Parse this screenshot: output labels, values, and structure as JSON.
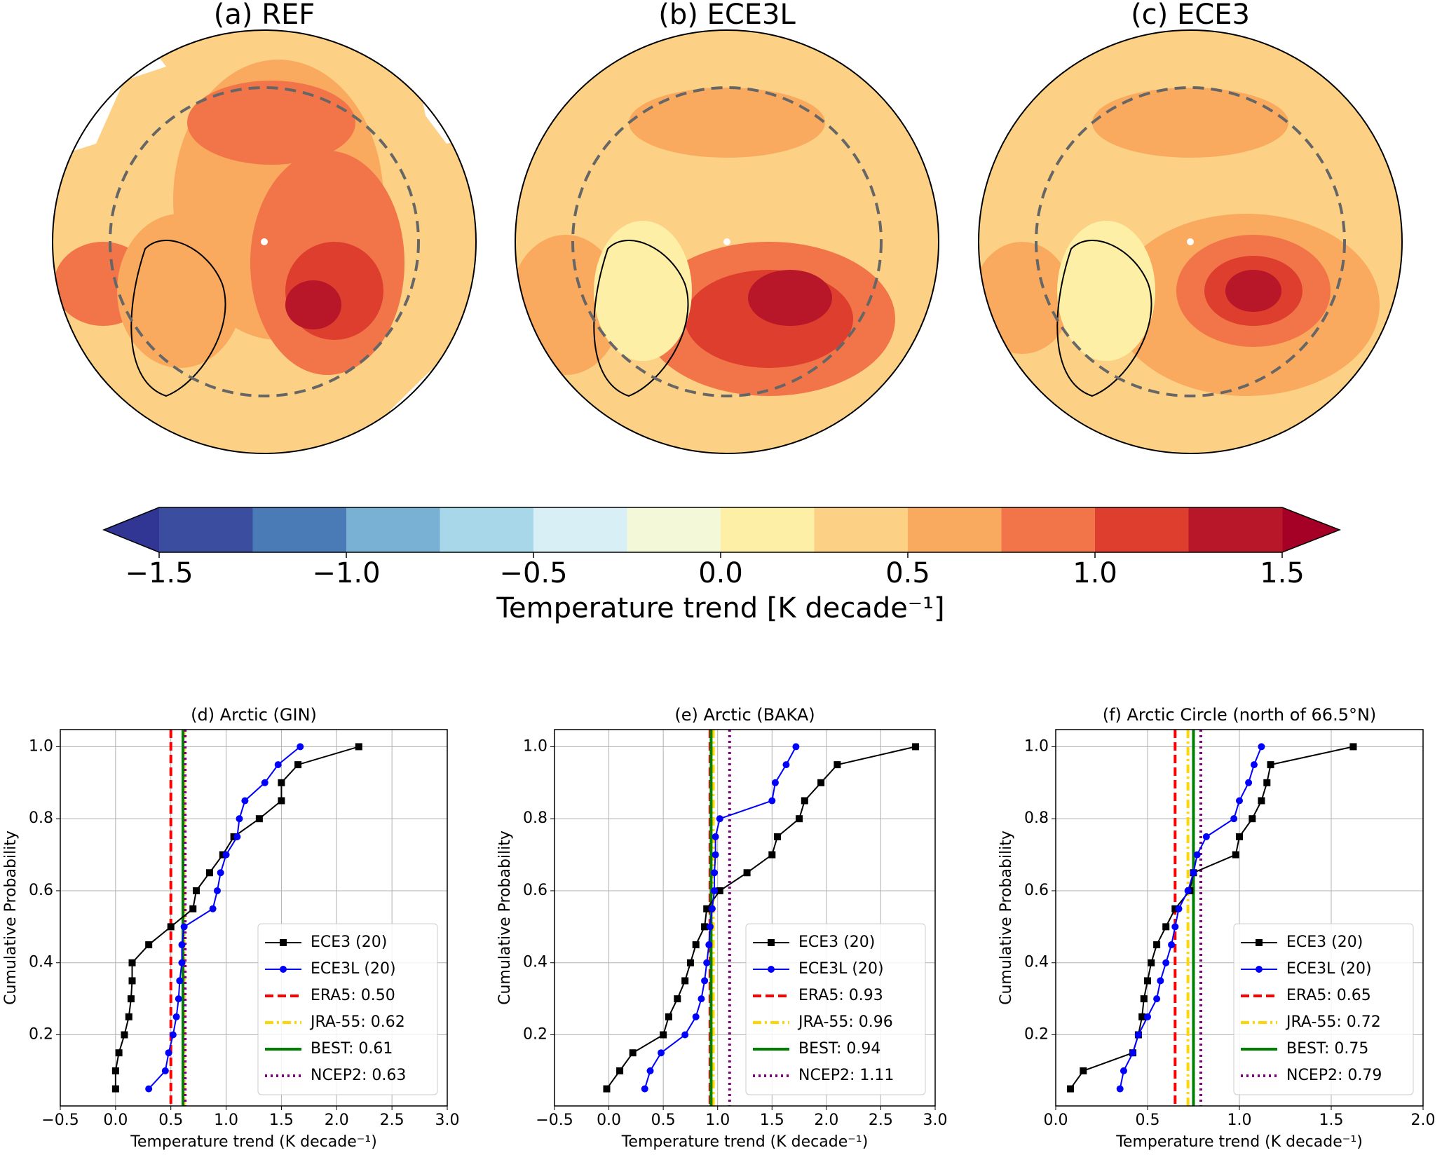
{
  "maps": [
    {
      "title": "(a) REF"
    },
    {
      "title": "(b) ECE3L"
    },
    {
      "title": "(c) ECE3"
    }
  ],
  "chart_data": [
    {
      "type": "colorbar",
      "label": "Temperature trend [K decade⁻¹]",
      "levels": [
        -1.5,
        -1.25,
        -1.0,
        -0.75,
        -0.5,
        -0.25,
        0.0,
        0.25,
        0.5,
        0.75,
        1.0,
        1.25,
        1.5
      ],
      "colors": [
        "#3b4d9f",
        "#4a7bb6",
        "#79b1d5",
        "#a8d7e9",
        "#d8eff6",
        "#f3f8d8",
        "#fdefa6",
        "#fcd185",
        "#f9aa5e",
        "#f27549",
        "#dd3e2d",
        "#b8172a"
      ],
      "under_color": "#313695",
      "over_color": "#a50026",
      "ticks": [
        {
          "value": -1.5,
          "label": "−1.5"
        },
        {
          "value": -1.0,
          "label": "−1.0"
        },
        {
          "value": -0.5,
          "label": "−0.5"
        },
        {
          "value": 0,
          "label": "0.0"
        },
        0.5,
        {
          "value": 1.0,
          "label": "1.0"
        },
        1.5
      ]
    },
    {
      "type": "line",
      "title": "(d) Arctic (GIN)",
      "xlabel": "Temperature trend (K decade⁻¹)",
      "ylabel": "Cumulative Probability",
      "xlim": [
        -0.5,
        3.0
      ],
      "ylim": [
        0.0025,
        1.0475
      ],
      "grid": true,
      "legend": "lower right",
      "xticks": [
        {
          "value": -0.5,
          "label": "−0.5"
        },
        {
          "value": 0,
          "label": "0.0"
        },
        0.5,
        {
          "value": 1.0,
          "label": "1.0"
        },
        1.5,
        {
          "value": 2.0,
          "label": "2.0"
        },
        2.5,
        {
          "value": 3.0,
          "label": "3.0"
        }
      ],
      "yticks": [
        0.2,
        0.4,
        0.6,
        0.8,
        {
          "value": 1.0,
          "label": "1.0"
        }
      ],
      "series": [
        {
          "name": "ECE3 (20)",
          "color": "#000000",
          "marker": "square",
          "x": [
            0.0,
            0.0,
            0.03,
            0.08,
            0.12,
            0.14,
            0.15,
            0.15,
            0.3,
            0.5,
            0.7,
            0.73,
            0.85,
            0.97,
            1.07,
            1.3,
            1.5,
            1.5,
            1.65,
            2.2
          ],
          "values": [
            0.05,
            0.1,
            0.15,
            0.2,
            0.25,
            0.3,
            0.35,
            0.4,
            0.45,
            0.5,
            0.55,
            0.6,
            0.65,
            0.7,
            0.75,
            0.8,
            0.85,
            0.9,
            0.95,
            1.0
          ]
        },
        {
          "name": "ECE3L (20)",
          "color": "#0000ff",
          "marker": "circle",
          "x": [
            0.3,
            0.45,
            0.48,
            0.52,
            0.55,
            0.57,
            0.58,
            0.6,
            0.6,
            0.62,
            0.88,
            0.92,
            0.95,
            1.0,
            1.1,
            1.12,
            1.17,
            1.35,
            1.47,
            1.67
          ],
          "values": [
            0.05,
            0.1,
            0.15,
            0.2,
            0.25,
            0.3,
            0.35,
            0.4,
            0.45,
            0.5,
            0.55,
            0.6,
            0.65,
            0.7,
            0.75,
            0.8,
            0.85,
            0.9,
            0.95,
            1.0
          ]
        }
      ],
      "refs": [
        {
          "name": "ERA5: 0.50",
          "value": 0.5,
          "color": "#ff0000",
          "linestyle": "dashed"
        },
        {
          "name": "JRA-55: 0.62",
          "value": 0.62,
          "color": "#ffd700",
          "linestyle": "dashdot"
        },
        {
          "name": "BEST: 0.61",
          "value": 0.61,
          "color": "#008000",
          "linestyle": "solid"
        },
        {
          "name": "NCEP2: 0.63",
          "value": 0.63,
          "color": "#800080",
          "linestyle": "dotted"
        }
      ]
    },
    {
      "type": "line",
      "title": "(e) Arctic (BAKA)",
      "xlabel": "Temperature trend (K decade⁻¹)",
      "ylabel": "Cumulative Probability",
      "xlim": [
        -0.5,
        3.0
      ],
      "ylim": [
        0.0025,
        1.0475
      ],
      "grid": true,
      "legend": "lower right",
      "xticks": [
        {
          "value": -0.5,
          "label": "−0.5"
        },
        {
          "value": 0,
          "label": "0.0"
        },
        0.5,
        {
          "value": 1.0,
          "label": "1.0"
        },
        1.5,
        {
          "value": 2.0,
          "label": "2.0"
        },
        2.5,
        {
          "value": 3.0,
          "label": "3.0"
        }
      ],
      "yticks": [
        0.2,
        0.4,
        0.6,
        0.8,
        {
          "value": 1.0,
          "label": "1.0"
        }
      ],
      "series": [
        {
          "name": "ECE3 (20)",
          "color": "#000000",
          "marker": "square",
          "x": [
            -0.02,
            0.1,
            0.22,
            0.5,
            0.55,
            0.63,
            0.7,
            0.75,
            0.8,
            0.88,
            0.9,
            1.02,
            1.27,
            1.5,
            1.55,
            1.75,
            1.8,
            1.95,
            2.1,
            2.82
          ],
          "values": [
            0.05,
            0.1,
            0.15,
            0.2,
            0.25,
            0.3,
            0.35,
            0.4,
            0.45,
            0.5,
            0.55,
            0.6,
            0.65,
            0.7,
            0.75,
            0.8,
            0.85,
            0.9,
            0.95,
            1.0
          ]
        },
        {
          "name": "ECE3L (20)",
          "color": "#0000ff",
          "marker": "circle",
          "x": [
            0.33,
            0.38,
            0.48,
            0.7,
            0.8,
            0.85,
            0.88,
            0.9,
            0.92,
            0.93,
            0.95,
            0.97,
            0.97,
            0.98,
            0.98,
            1.02,
            1.5,
            1.53,
            1.63,
            1.72
          ],
          "values": [
            0.05,
            0.1,
            0.15,
            0.2,
            0.25,
            0.3,
            0.35,
            0.4,
            0.45,
            0.5,
            0.55,
            0.6,
            0.65,
            0.7,
            0.75,
            0.8,
            0.85,
            0.9,
            0.95,
            1.0
          ]
        }
      ],
      "refs": [
        {
          "name": "ERA5: 0.93",
          "value": 0.93,
          "color": "#ff0000",
          "linestyle": "dashed"
        },
        {
          "name": "JRA-55: 0.96",
          "value": 0.96,
          "color": "#ffd700",
          "linestyle": "dashdot"
        },
        {
          "name": "BEST: 0.94",
          "value": 0.94,
          "color": "#008000",
          "linestyle": "solid"
        },
        {
          "name": "NCEP2: 1.11",
          "value": 1.11,
          "color": "#800080",
          "linestyle": "dotted"
        }
      ]
    },
    {
      "type": "line",
      "title": "(f) Arctic Circle (north of 66.5°N)",
      "xlabel": "Temperature trend (K decade⁻¹)",
      "ylabel": "Cumulative Probability",
      "xlim": [
        0.0,
        2.0
      ],
      "ylim": [
        0.0025,
        1.0475
      ],
      "grid": true,
      "legend": "lower right",
      "xticks": [
        {
          "value": 0,
          "label": "0.0"
        },
        0.5,
        {
          "value": 1.0,
          "label": "1.0"
        },
        1.5,
        {
          "value": 2.0,
          "label": "2.0"
        }
      ],
      "yticks": [
        0.2,
        0.4,
        0.6,
        0.8,
        {
          "value": 1.0,
          "label": "1.0"
        }
      ],
      "series": [
        {
          "name": "ECE3 (20)",
          "color": "#000000",
          "marker": "square",
          "x": [
            0.08,
            0.15,
            0.42,
            0.45,
            0.47,
            0.48,
            0.5,
            0.52,
            0.55,
            0.6,
            0.65,
            0.73,
            0.75,
            0.98,
            1.0,
            1.07,
            1.12,
            1.15,
            1.17,
            1.62
          ],
          "values": [
            0.05,
            0.1,
            0.15,
            0.2,
            0.25,
            0.3,
            0.35,
            0.4,
            0.45,
            0.5,
            0.55,
            0.6,
            0.65,
            0.7,
            0.75,
            0.8,
            0.85,
            0.9,
            0.95,
            1.0
          ]
        },
        {
          "name": "ECE3L (20)",
          "color": "#0000ff",
          "marker": "circle",
          "x": [
            0.35,
            0.37,
            0.42,
            0.45,
            0.5,
            0.55,
            0.57,
            0.6,
            0.63,
            0.65,
            0.67,
            0.72,
            0.75,
            0.77,
            0.82,
            0.97,
            1.0,
            1.05,
            1.08,
            1.12
          ],
          "values": [
            0.05,
            0.1,
            0.15,
            0.2,
            0.25,
            0.3,
            0.35,
            0.4,
            0.45,
            0.5,
            0.55,
            0.6,
            0.65,
            0.7,
            0.75,
            0.8,
            0.85,
            0.9,
            0.95,
            1.0
          ]
        }
      ],
      "refs": [
        {
          "name": "ERA5: 0.65",
          "value": 0.65,
          "color": "#ff0000",
          "linestyle": "dashed"
        },
        {
          "name": "JRA-55: 0.72",
          "value": 0.72,
          "color": "#ffd700",
          "linestyle": "dashdot"
        },
        {
          "name": "BEST: 0.75",
          "value": 0.75,
          "color": "#008000",
          "linestyle": "solid"
        },
        {
          "name": "NCEP2: 0.79",
          "value": 0.79,
          "color": "#800080",
          "linestyle": "dotted"
        }
      ]
    }
  ]
}
